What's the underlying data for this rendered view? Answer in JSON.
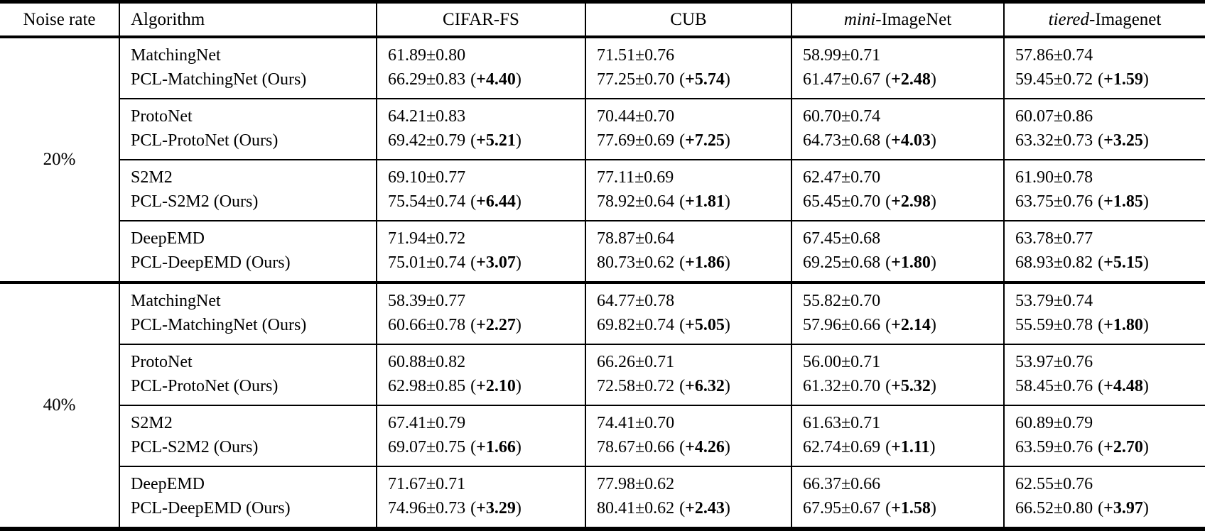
{
  "header": {
    "noise_rate": "Noise rate",
    "algorithm": "Algorithm",
    "datasets": [
      {
        "italic": "",
        "rest": "CIFAR-FS"
      },
      {
        "italic": "",
        "rest": "CUB"
      },
      {
        "italic": "mini",
        "rest": "-ImageNet"
      },
      {
        "italic": "tiered",
        "rest": "-Imagenet"
      }
    ]
  },
  "blocks": [
    {
      "noise_rate": "20%",
      "groups": [
        {
          "rows": [
            {
              "algorithm": "MatchingNet",
              "cells": [
                {
                  "v": "61.89±0.80"
                },
                {
                  "v": "71.51±0.76"
                },
                {
                  "v": "58.99±0.71"
                },
                {
                  "v": "57.86±0.74"
                }
              ]
            },
            {
              "algorithm": "PCL-MatchingNet (Ours)",
              "cells": [
                {
                  "v": "66.29±0.83",
                  "g": "+4.40"
                },
                {
                  "v": "77.25±0.70",
                  "g": "+5.74"
                },
                {
                  "v": "61.47±0.67",
                  "g": "+2.48"
                },
                {
                  "v": "59.45±0.72",
                  "g": "+1.59"
                }
              ]
            }
          ]
        },
        {
          "rows": [
            {
              "algorithm": "ProtoNet",
              "cells": [
                {
                  "v": "64.21±0.83"
                },
                {
                  "v": "70.44±0.70"
                },
                {
                  "v": "60.70±0.74"
                },
                {
                  "v": "60.07±0.86"
                }
              ]
            },
            {
              "algorithm": "PCL-ProtoNet (Ours)",
              "cells": [
                {
                  "v": "69.42±0.79",
                  "g": "+5.21"
                },
                {
                  "v": "77.69±0.69",
                  "g": "+7.25"
                },
                {
                  "v": "64.73±0.68",
                  "g": "+4.03"
                },
                {
                  "v": "63.32±0.73",
                  "g": "+3.25"
                }
              ]
            }
          ]
        },
        {
          "rows": [
            {
              "algorithm": "S2M2",
              "cells": [
                {
                  "v": "69.10±0.77"
                },
                {
                  "v": "77.11±0.69"
                },
                {
                  "v": "62.47±0.70"
                },
                {
                  "v": "61.90±0.78"
                }
              ]
            },
            {
              "algorithm": "PCL-S2M2 (Ours)",
              "cells": [
                {
                  "v": "75.54±0.74",
                  "g": "+6.44"
                },
                {
                  "v": "78.92±0.64",
                  "g": "+1.81"
                },
                {
                  "v": "65.45±0.70",
                  "g": "+2.98"
                },
                {
                  "v": "63.75±0.76",
                  "g": "+1.85"
                }
              ]
            }
          ]
        },
        {
          "rows": [
            {
              "algorithm": "DeepEMD",
              "cells": [
                {
                  "v": "71.94±0.72"
                },
                {
                  "v": "78.87±0.64"
                },
                {
                  "v": "67.45±0.68"
                },
                {
                  "v": "63.78±0.77"
                }
              ]
            },
            {
              "algorithm": "PCL-DeepEMD (Ours)",
              "cells": [
                {
                  "v": "75.01±0.74",
                  "g": "+3.07"
                },
                {
                  "v": "80.73±0.62",
                  "g": "+1.86"
                },
                {
                  "v": "69.25±0.68",
                  "g": "+1.80"
                },
                {
                  "v": "68.93±0.82",
                  "g": "+5.15"
                }
              ]
            }
          ]
        }
      ]
    },
    {
      "noise_rate": "40%",
      "groups": [
        {
          "rows": [
            {
              "algorithm": "MatchingNet",
              "cells": [
                {
                  "v": "58.39±0.77"
                },
                {
                  "v": "64.77±0.78"
                },
                {
                  "v": "55.82±0.70"
                },
                {
                  "v": "53.79±0.74"
                }
              ]
            },
            {
              "algorithm": "PCL-MatchingNet (Ours)",
              "cells": [
                {
                  "v": "60.66±0.78",
                  "g": "+2.27"
                },
                {
                  "v": "69.82±0.74",
                  "g": "+5.05"
                },
                {
                  "v": "57.96±0.66",
                  "g": "+2.14"
                },
                {
                  "v": "55.59±0.78",
                  "g": "+1.80"
                }
              ]
            }
          ]
        },
        {
          "rows": [
            {
              "algorithm": "ProtoNet",
              "cells": [
                {
                  "v": "60.88±0.82"
                },
                {
                  "v": "66.26±0.71"
                },
                {
                  "v": "56.00±0.71"
                },
                {
                  "v": "53.97±0.76"
                }
              ]
            },
            {
              "algorithm": "PCL-ProtoNet (Ours)",
              "cells": [
                {
                  "v": "62.98±0.85",
                  "g": "+2.10"
                },
                {
                  "v": "72.58±0.72",
                  "g": "+6.32"
                },
                {
                  "v": "61.32±0.70",
                  "g": "+5.32"
                },
                {
                  "v": "58.45±0.76",
                  "g": "+4.48"
                }
              ]
            }
          ]
        },
        {
          "rows": [
            {
              "algorithm": "S2M2",
              "cells": [
                {
                  "v": "67.41±0.79"
                },
                {
                  "v": "74.41±0.70"
                },
                {
                  "v": "61.63±0.71"
                },
                {
                  "v": "60.89±0.79"
                }
              ]
            },
            {
              "algorithm": "PCL-S2M2 (Ours)",
              "cells": [
                {
                  "v": "69.07±0.75",
                  "g": "+1.66"
                },
                {
                  "v": "78.67±0.66",
                  "g": "+4.26"
                },
                {
                  "v": "62.74±0.69",
                  "g": "+1.11"
                },
                {
                  "v": "63.59±0.76",
                  "g": "+2.70"
                }
              ]
            }
          ]
        },
        {
          "rows": [
            {
              "algorithm": "DeepEMD",
              "cells": [
                {
                  "v": "71.67±0.71"
                },
                {
                  "v": "77.98±0.62"
                },
                {
                  "v": "66.37±0.66"
                },
                {
                  "v": "62.55±0.76"
                }
              ]
            },
            {
              "algorithm": "PCL-DeepEMD (Ours)",
              "cells": [
                {
                  "v": "74.96±0.73",
                  "g": "+3.29"
                },
                {
                  "v": "80.41±0.62",
                  "g": "+2.43"
                },
                {
                  "v": "67.95±0.67",
                  "g": "+1.58"
                },
                {
                  "v": "66.52±0.80",
                  "g": "+3.97"
                }
              ]
            }
          ]
        }
      ]
    }
  ]
}
